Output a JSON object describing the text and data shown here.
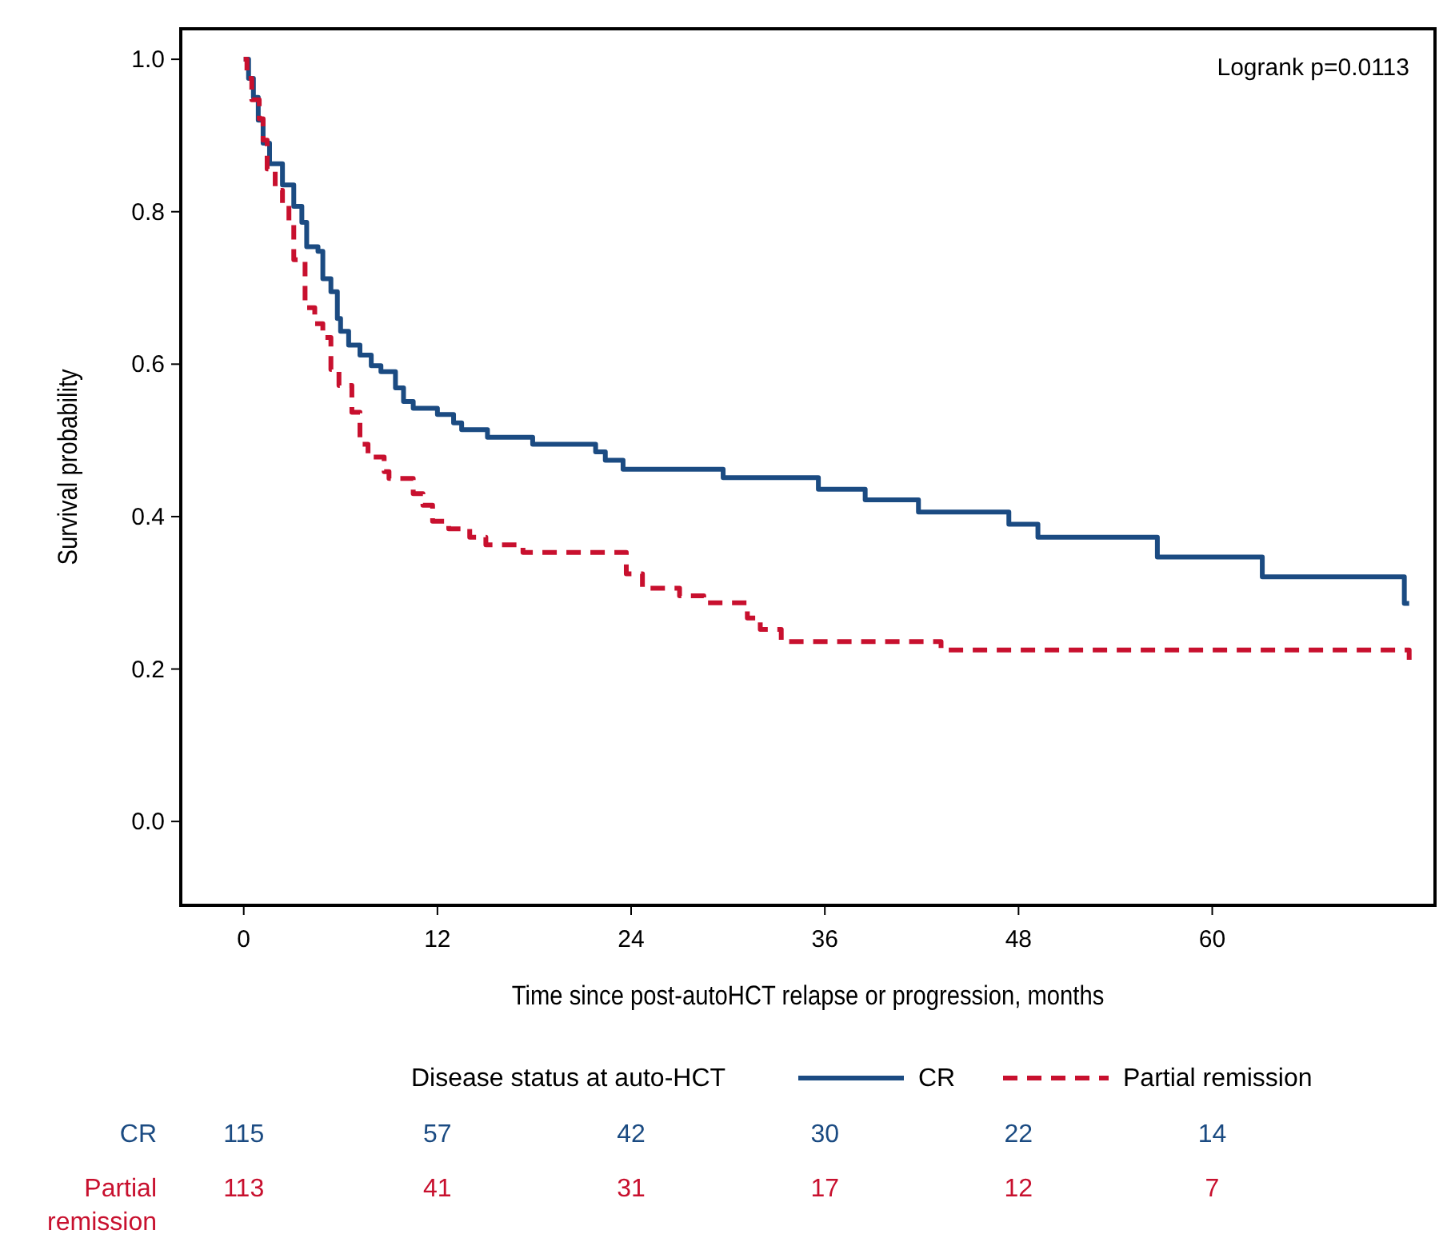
{
  "chart_data": {
    "type": "step",
    "xlabel": "Time since post-autoHCT relapse or progression, months",
    "ylabel": "Survival probability",
    "legend_title": "Disease status at auto-HCT",
    "legend": "bottom",
    "grid": false,
    "marker": "none",
    "xlim": [
      -3.9,
      73.8
    ],
    "ylim": [
      -0.11,
      1.04
    ],
    "xticks": [
      0,
      12,
      24,
      36,
      48,
      60
    ],
    "yticks": [
      {
        "value": 0,
        "label": "0.0"
      },
      0.2,
      0.4,
      0.6,
      0.8,
      {
        "value": 1,
        "label": "1.0"
      }
    ],
    "annotations": [
      "Logrank p=0.0113",
      "CR",
      "115",
      "57",
      "42",
      "30",
      "22",
      "14",
      "Partial remission",
      "113",
      "41",
      "31",
      "17",
      "12",
      "7"
    ],
    "series": [
      {
        "name": "CR",
        "color": "#1b4b82",
        "line_style": "solid",
        "x": [
          0,
          0.3,
          0.6,
          0.9,
          1.2,
          1.6,
          2.4,
          3.1,
          3.6,
          3.9,
          4.6,
          4.9,
          5.4,
          5.8,
          6.0,
          6.5,
          7.2,
          7.9,
          8.5,
          9.4,
          9.9,
          10.5,
          12.0,
          13.0,
          13.5,
          15.1,
          17.9,
          21.8,
          22.4,
          23.5,
          29.7,
          35.6,
          38.5,
          41.8,
          47.4,
          49.2,
          56.6,
          63.1,
          71.9,
          72.2
        ],
        "values": [
          1.0,
          0.975,
          0.95,
          0.92,
          0.89,
          0.863,
          0.835,
          0.807,
          0.786,
          0.754,
          0.748,
          0.712,
          0.695,
          0.66,
          0.643,
          0.625,
          0.612,
          0.598,
          0.59,
          0.569,
          0.551,
          0.542,
          0.534,
          0.523,
          0.514,
          0.504,
          0.495,
          0.485,
          0.474,
          0.462,
          0.451,
          0.436,
          0.422,
          0.406,
          0.39,
          0.373,
          0.347,
          0.321,
          0.286,
          0.286
        ]
      },
      {
        "name": "Partial remission",
        "color": "#c8102e",
        "line_style": "dashed",
        "x": [
          0,
          0.2,
          0.5,
          0.96,
          1.2,
          1.45,
          1.95,
          2.4,
          2.8,
          3.1,
          3.8,
          4.4,
          4.9,
          5.4,
          5.9,
          6.7,
          7.2,
          7.7,
          8.7,
          9.0,
          10.5,
          11.1,
          11.7,
          12.7,
          14.0,
          15.0,
          17.3,
          23.7,
          24.7,
          27.0,
          28.5,
          31.2,
          32.0,
          33.3,
          43.2,
          72.2
        ],
        "values": [
          1.0,
          0.975,
          0.947,
          0.922,
          0.894,
          0.856,
          0.828,
          0.808,
          0.786,
          0.737,
          0.674,
          0.653,
          0.635,
          0.593,
          0.572,
          0.537,
          0.495,
          0.478,
          0.459,
          0.45,
          0.43,
          0.415,
          0.394,
          0.384,
          0.373,
          0.363,
          0.353,
          0.325,
          0.306,
          0.296,
          0.287,
          0.267,
          0.252,
          0.236,
          0.225,
          0.21
        ]
      }
    ]
  }
}
